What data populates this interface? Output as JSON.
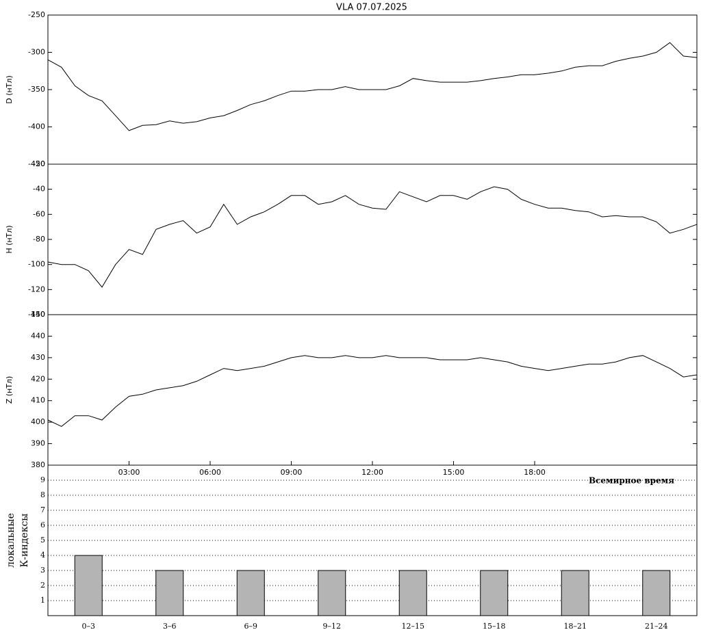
{
  "chart_data": [
    {
      "type": "line",
      "title": "VLA   07.07.2025",
      "ylabel": "D (нТл)",
      "color": "#000000",
      "x": [
        0,
        0.5,
        1,
        1.5,
        2,
        2.5,
        3,
        3.5,
        4,
        4.5,
        5,
        5.5,
        6,
        6.5,
        7,
        7.5,
        8,
        8.5,
        9,
        9.5,
        10,
        10.5,
        11,
        11.5,
        12,
        12.5,
        13,
        13.5,
        14,
        14.5,
        15,
        15.5,
        16,
        16.5,
        17,
        17.5,
        18,
        18.5,
        19,
        19.5,
        20,
        20.5,
        21,
        21.5,
        22,
        22.5,
        23,
        23.5,
        24
      ],
      "values": [
        -310,
        -320,
        -345,
        -358,
        -365,
        -385,
        -405,
        -398,
        -397,
        -392,
        -395,
        -393,
        -388,
        -385,
        -378,
        -370,
        -365,
        -358,
        -352,
        -352,
        -350,
        -350,
        -346,
        -350,
        -350,
        -350,
        -345,
        -335,
        -338,
        -340,
        -340,
        -340,
        -338,
        -335,
        -333,
        -330,
        -330,
        -328,
        -325,
        -320,
        -318,
        -318,
        -312,
        -308,
        -305,
        -300,
        -287,
        -305,
        -307
      ],
      "xlim": [
        0,
        24
      ],
      "ylim": [
        -450,
        -250
      ],
      "yticks": [
        -450,
        -400,
        -350,
        -300,
        -250
      ]
    },
    {
      "type": "line",
      "ylabel": "H (нТл)",
      "color": "#000000",
      "x": [
        0,
        0.5,
        1,
        1.5,
        2,
        2.5,
        3,
        3.5,
        4,
        4.5,
        5,
        5.5,
        6,
        6.5,
        7,
        7.5,
        8,
        8.5,
        9,
        9.5,
        10,
        10.5,
        11,
        11.5,
        12,
        12.5,
        13,
        13.5,
        14,
        14.5,
        15,
        15.5,
        16,
        16.5,
        17,
        17.5,
        18,
        18.5,
        19,
        19.5,
        20,
        20.5,
        21,
        21.5,
        22,
        22.5,
        23,
        23.5,
        24
      ],
      "values": [
        -98,
        -100,
        -100,
        -105,
        -118,
        -100,
        -88,
        -92,
        -72,
        -68,
        -65,
        -75,
        -70,
        -52,
        -68,
        -62,
        -58,
        -52,
        -45,
        -45,
        -52,
        -50,
        -45,
        -52,
        -55,
        -56,
        -42,
        -46,
        -50,
        -45,
        -45,
        -48,
        -42,
        -38,
        -40,
        -48,
        -52,
        -55,
        -55,
        -57,
        -58,
        -62,
        -61,
        -62,
        -62,
        -66,
        -75,
        -72,
        -68
      ],
      "xlim": [
        0,
        24
      ],
      "ylim": [
        -140,
        -20
      ],
      "yticks": [
        -140,
        -120,
        -100,
        -80,
        -60,
        -40,
        -20
      ]
    },
    {
      "type": "line",
      "ylabel": "Z (нТл)",
      "color": "#000000",
      "x": [
        0,
        0.5,
        1,
        1.5,
        2,
        2.5,
        3,
        3.5,
        4,
        4.5,
        5,
        5.5,
        6,
        6.5,
        7,
        7.5,
        8,
        8.5,
        9,
        9.5,
        10,
        10.5,
        11,
        11.5,
        12,
        12.5,
        13,
        13.5,
        14,
        14.5,
        15,
        15.5,
        16,
        16.5,
        17,
        17.5,
        18,
        18.5,
        19,
        19.5,
        20,
        20.5,
        21,
        21.5,
        22,
        22.5,
        23,
        23.5,
        24
      ],
      "values": [
        401,
        398,
        403,
        403,
        401,
        407,
        412,
        413,
        415,
        416,
        417,
        419,
        422,
        425,
        424,
        425,
        426,
        428,
        430,
        431,
        430,
        430,
        431,
        430,
        430,
        431,
        430,
        430,
        430,
        429,
        429,
        429,
        430,
        429,
        428,
        426,
        425,
        424,
        425,
        426,
        427,
        427,
        428,
        430,
        431,
        428,
        425,
        421,
        422
      ],
      "xlim": [
        0,
        24
      ],
      "ylim": [
        380,
        450
      ],
      "yticks": [
        380,
        390,
        400,
        410,
        420,
        430,
        440,
        450
      ],
      "xticks": [
        {
          "value": 3,
          "label": "03:00"
        },
        {
          "value": 6,
          "label": "06:00"
        },
        {
          "value": 9,
          "label": "09:00"
        },
        {
          "value": 12,
          "label": "12:00"
        },
        {
          "value": 15,
          "label": "15:00"
        },
        {
          "value": 18,
          "label": "18:00"
        }
      ],
      "xlabel": "Всемирное время"
    },
    {
      "type": "bar",
      "ylabel": [
        "локальные",
        "К-индексы"
      ],
      "color": "#b4b4b4",
      "grid": true,
      "categories": [
        "0–3",
        "3–6",
        "6–9",
        "9–12",
        "12–15",
        "15–18",
        "18–21",
        "21–24"
      ],
      "values": [
        4,
        3,
        3,
        3,
        3,
        3,
        3,
        3
      ],
      "ylim": [
        0,
        10
      ],
      "yticks": [
        1,
        2,
        3,
        4,
        5,
        6,
        7,
        8,
        9
      ]
    }
  ]
}
